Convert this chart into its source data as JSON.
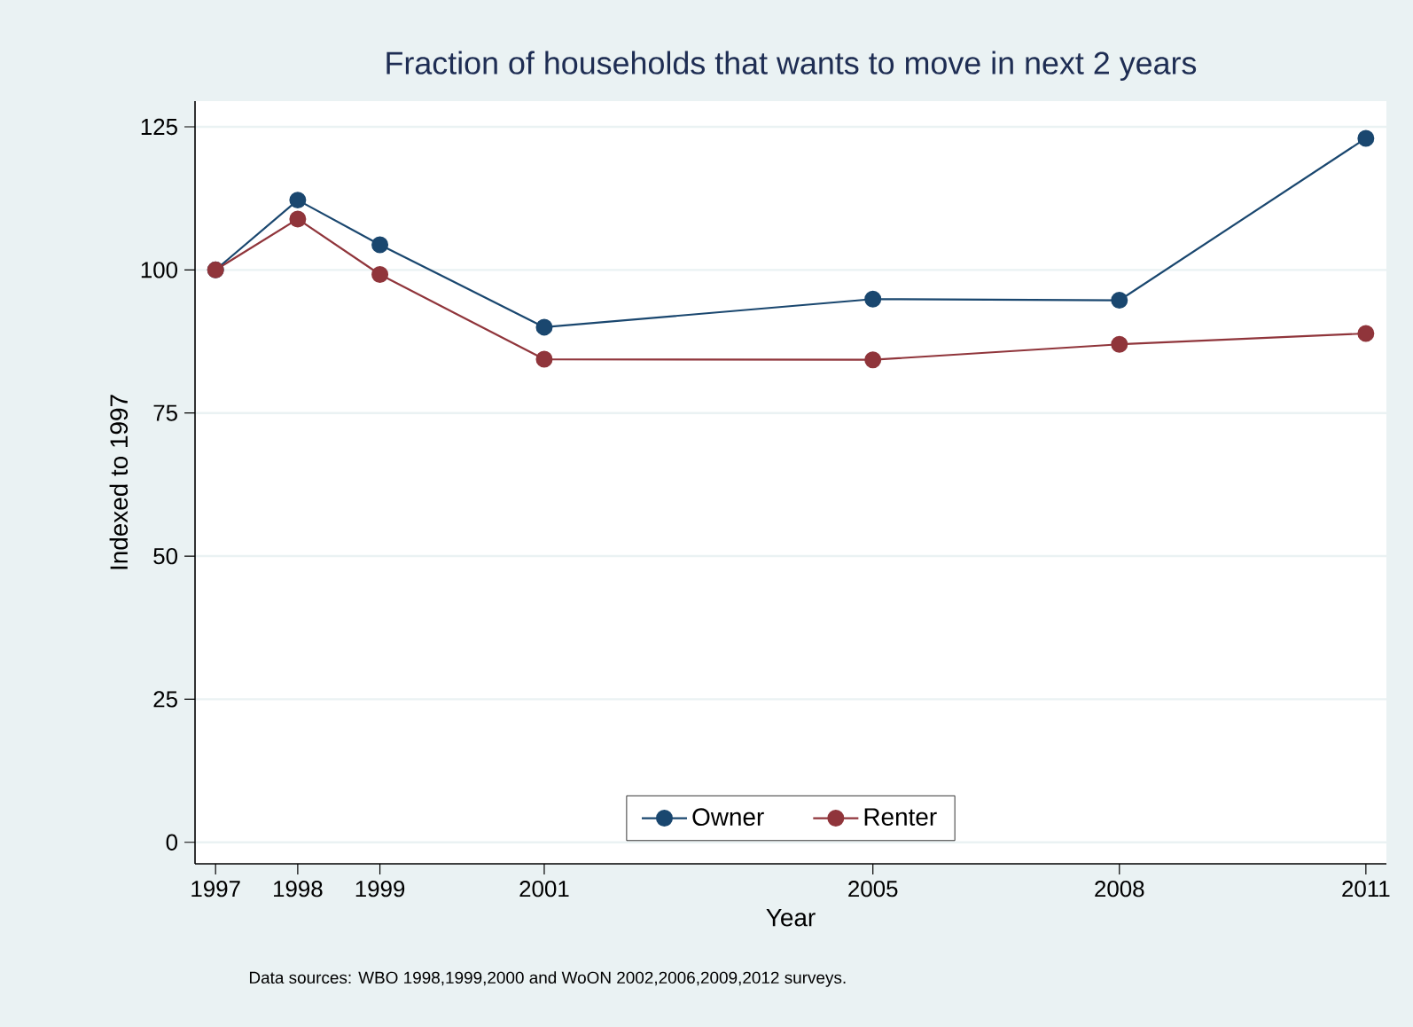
{
  "chart_data": {
    "type": "line",
    "title": "Fraction of households that wants to move in next 2 years",
    "xlabel": "Year",
    "ylabel": "Indexed to 1997",
    "x": [
      1997,
      1998,
      1999,
      2001,
      2005,
      2008,
      2011
    ],
    "series": [
      {
        "name": "Owner",
        "color": "#1a476f",
        "values": [
          100,
          112.2,
          104.4,
          90.0,
          94.9,
          94.7,
          123.0
        ]
      },
      {
        "name": "Renter",
        "color": "#90353b",
        "values": [
          100,
          108.9,
          99.2,
          84.4,
          84.3,
          87.0,
          88.9
        ]
      }
    ],
    "xlim": [
      1996.75,
      2011.25
    ],
    "ylim": [
      -3.75,
      129.5
    ],
    "xticks": [
      1997,
      1998,
      1999,
      2001,
      2005,
      2008,
      2011
    ],
    "yticks": [
      0,
      25,
      50,
      75,
      100,
      125
    ],
    "grid": "y",
    "legend": "bottom",
    "marker": "circle",
    "line_style": "solid",
    "annotations": [
      "Data sources: WBO 1998,1999,2000 and WoON 2002,2006,2009,2012 surveys."
    ]
  }
}
